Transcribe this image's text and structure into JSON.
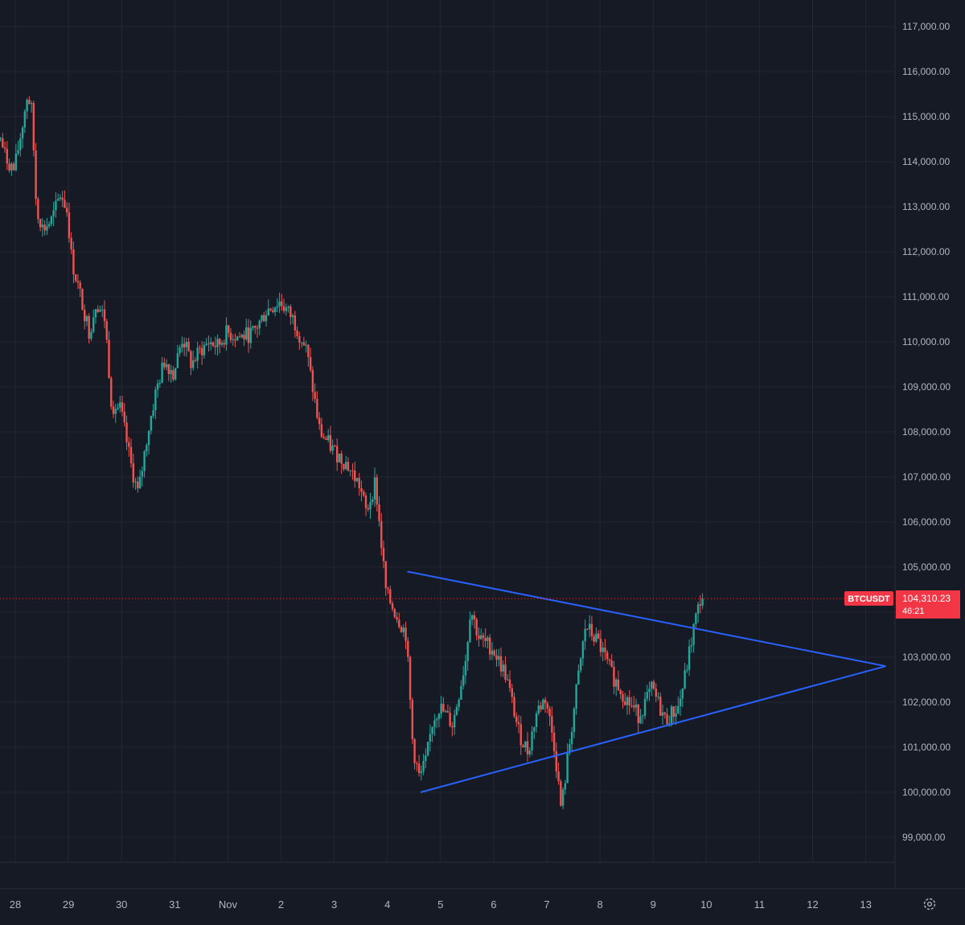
{
  "chart_data": {
    "type": "candlestick",
    "symbol": "BTCUSDT",
    "last_price": "104,310.23",
    "countdown": "46:21",
    "ylim": [
      98600,
      117300
    ],
    "y_ticks": [
      99000,
      100000,
      101000,
      102000,
      103000,
      104000,
      105000,
      106000,
      107000,
      108000,
      109000,
      110000,
      111000,
      112000,
      113000,
      114000,
      115000,
      116000,
      117000
    ],
    "y_tick_labels": [
      "99,000.00",
      "100,000.00",
      "101,000.00",
      "102,000.00",
      "103,000.00",
      "104,000.00",
      "105,000.00",
      "106,000.00",
      "107,000.00",
      "108,000.00",
      "109,000.00",
      "110,000.00",
      "111,000.00",
      "112,000.00",
      "113,000.00",
      "114,000.00",
      "115,000.00",
      "116,000.00",
      "117,000.00"
    ],
    "x_range_days": [
      27.7,
      13.45
    ],
    "x_ticks": [
      {
        "label": "28",
        "day": 28
      },
      {
        "label": "29",
        "day": 29
      },
      {
        "label": "30",
        "day": 30
      },
      {
        "label": "31",
        "day": 31
      },
      {
        "label": "Nov",
        "day": 32
      },
      {
        "label": "2",
        "day": 33
      },
      {
        "label": "3",
        "day": 34
      },
      {
        "label": "4",
        "day": 35
      },
      {
        "label": "5",
        "day": 36
      },
      {
        "label": "6",
        "day": 37
      },
      {
        "label": "7",
        "day": 38
      },
      {
        "label": "8",
        "day": 39
      },
      {
        "label": "9",
        "day": 40
      },
      {
        "label": "10",
        "day": 41
      },
      {
        "label": "11",
        "day": 42
      },
      {
        "label": "12",
        "day": 43
      },
      {
        "label": "13",
        "day": 44
      }
    ],
    "price_path": [
      [
        "Oct 27 18:00",
        114500
      ],
      [
        "Oct 27 20:00",
        114100
      ],
      [
        "Oct 28 00:00",
        113800
      ],
      [
        "Oct 28 03:00",
        114600
      ],
      [
        "Oct 28 06:00",
        115500
      ],
      [
        "Oct 28 08:00",
        115100
      ],
      [
        "Oct 28 10:00",
        113000
      ],
      [
        "Oct 28 13:00",
        112500
      ],
      [
        "Oct 28 17:00",
        112700
      ],
      [
        "Oct 28 21:00",
        113300
      ],
      [
        "Oct 29 00:00",
        112900
      ],
      [
        "Oct 29 02:00",
        111800
      ],
      [
        "Oct 29 06:00",
        111000
      ],
      [
        "Oct 29 10:00",
        110200
      ],
      [
        "Oct 29 13:00",
        110900
      ],
      [
        "Oct 29 17:00",
        110500
      ],
      [
        "Oct 29 20:00",
        108600
      ],
      [
        "Oct 30 00:00",
        108500
      ],
      [
        "Oct 30 05:00",
        107200
      ],
      [
        "Oct 30 08:00",
        106600
      ],
      [
        "Oct 30 12:00",
        107900
      ],
      [
        "Oct 30 16:00",
        108900
      ],
      [
        "Oct 30 20:00",
        109600
      ],
      [
        "Oct 31 00:00",
        109300
      ],
      [
        "Oct 31 04:00",
        110100
      ],
      [
        "Oct 31 08:00",
        109500
      ],
      [
        "Oct 31 12:00",
        109800
      ],
      [
        "Oct 31 16:00",
        110000
      ],
      [
        "Oct 31 20:00",
        109900
      ],
      [
        "Nov 01 00:00",
        110200
      ],
      [
        "Nov 01 06:00",
        110100
      ],
      [
        "Nov 01 12:00",
        110200
      ],
      [
        "Nov 01 18:00",
        110700
      ],
      [
        "Nov 02 00:00",
        110900
      ],
      [
        "Nov 02 06:00",
        110500
      ],
      [
        "Nov 02 12:00",
        109800
      ],
      [
        "Nov 02 18:00",
        108000
      ],
      [
        "Nov 03 00:00",
        107600
      ],
      [
        "Nov 03 06:00",
        107300
      ],
      [
        "Nov 03 12:00",
        106800
      ],
      [
        "Nov 03 15:00",
        106200
      ],
      [
        "Nov 03 19:00",
        106900
      ],
      [
        "Nov 04 00:00",
        104400
      ],
      [
        "Nov 04 05:00",
        103900
      ],
      [
        "Nov 04 09:00",
        103500
      ],
      [
        "Nov 04 12:00",
        101000
      ],
      [
        "Nov 04 15:00",
        100300
      ],
      [
        "Nov 04 18:00",
        100700
      ],
      [
        "Nov 04 21:00",
        101600
      ],
      [
        "Nov 05 00:00",
        101900
      ],
      [
        "Nov 05 06:00",
        101500
      ],
      [
        "Nov 05 12:00",
        103000
      ],
      [
        "Nov 05 14:00",
        104100
      ],
      [
        "Nov 05 18:00",
        103400
      ],
      [
        "Nov 06 00:00",
        103200
      ],
      [
        "Nov 06 06:00",
        102600
      ],
      [
        "Nov 06 12:00",
        101300
      ],
      [
        "Nov 06 16:00",
        100900
      ],
      [
        "Nov 06 20:00",
        101800
      ],
      [
        "Nov 07 00:00",
        102100
      ],
      [
        "Nov 07 04:00",
        101000
      ],
      [
        "Nov 07 07:00",
        99600
      ],
      [
        "Nov 07 10:00",
        100800
      ],
      [
        "Nov 07 14:00",
        102300
      ],
      [
        "Nov 07 18:00",
        103700
      ],
      [
        "Nov 08 00:00",
        103300
      ],
      [
        "Nov 08 06:00",
        102600
      ],
      [
        "Nov 08 12:00",
        102100
      ],
      [
        "Nov 08 18:00",
        101700
      ],
      [
        "Nov 09 00:00",
        102300
      ],
      [
        "Nov 09 06:00",
        101600
      ],
      [
        "Nov 09 12:00",
        101900
      ],
      [
        "Nov 09 15:00",
        102600
      ],
      [
        "Nov 09 19:00",
        103700
      ],
      [
        "Nov 09 22:00",
        104300
      ]
    ],
    "trendlines": [
      {
        "name": "upper",
        "points": [
          [
            "Nov 04 09:00",
            104900
          ],
          [
            "Nov 13 09:00",
            102800
          ]
        ]
      },
      {
        "name": "lower",
        "points": [
          [
            "Nov 04 15:00",
            100000
          ],
          [
            "Nov 13 09:00",
            102800
          ]
        ]
      }
    ],
    "colors": {
      "background": "#161a25",
      "grid": "#232734",
      "up": "#26a69a",
      "down": "#ef5350",
      "trendline": "#2962ff",
      "price_tag": "#f23645",
      "axis_text": "#b2b5be"
    },
    "grid": true,
    "settings_icon": "gear-icon"
  }
}
